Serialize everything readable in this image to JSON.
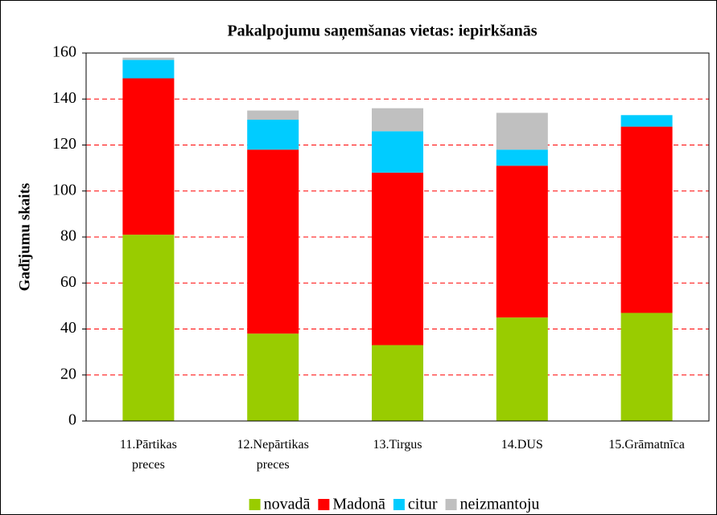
{
  "chart_data": {
    "type": "stacked_bar",
    "title": "Pakalpojumu saņemšanas vietas: iepirkšanās",
    "y_label": "Gadījumu skaits",
    "categories": [
      "11.Pārtikas preces",
      "12.Nepārtikas preces",
      "13.Tirgus",
      "14.DUS",
      "15.Grāmatnīca"
    ],
    "series": [
      {
        "name": "novadā",
        "color": "#99cc00",
        "values": [
          81,
          38,
          33,
          45,
          47
        ]
      },
      {
        "name": "Madonā",
        "color": "#ff0000",
        "values": [
          68,
          80,
          75,
          66,
          81
        ]
      },
      {
        "name": "citur",
        "color": "#00ccff",
        "values": [
          8,
          13,
          18,
          7,
          5
        ]
      },
      {
        "name": "neizmantoju",
        "color": "#c0c0c0",
        "values": [
          1,
          4,
          10,
          16,
          0
        ]
      }
    ],
    "ylim": [
      0,
      160
    ],
    "yticks": [
      0,
      20,
      40,
      60,
      80,
      100,
      120,
      140,
      160
    ],
    "grid": true,
    "grid_color": "#ff0000",
    "legend": "bottom"
  }
}
